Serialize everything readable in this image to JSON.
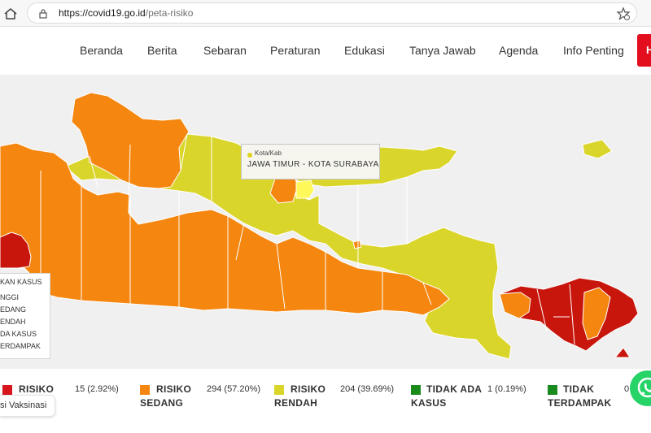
{
  "browser": {
    "url_domain": "https://covid19.go.id",
    "url_path": "/peta-risiko"
  },
  "nav": {
    "items": [
      "Beranda",
      "Berita",
      "Sebaran",
      "Peraturan",
      "Edukasi",
      "Tanya Jawab",
      "Agenda",
      "Info Penting"
    ],
    "button_partial": "H"
  },
  "map": {
    "tooltip_key": "Kota/Kab",
    "tooltip_value": "JAWA TIMUR - KOTA SURABAYA",
    "legend_title": "KAN KASUS",
    "legend_items": [
      "NGGI",
      "EDANG",
      "ENDAH",
      "DA KASUS",
      "ERDAMPAK"
    ],
    "colors": {
      "tinggi": "#c8160c",
      "sedang": "#f5860f",
      "rendah": "#dad52b",
      "highlight": "#fff85a",
      "tidak_ada_kasus": "#1a8a1a",
      "tidak_terdampak": "#198a1e"
    }
  },
  "stats": {
    "tinggi": {
      "label_line1": "RISIKO",
      "value": "15 (2.92%)",
      "color": "#d7161e"
    },
    "sedang": {
      "label_line1": "RISIKO",
      "label_line2": "SEDANG",
      "value": "294 (57.20%)",
      "color": "#f5860f"
    },
    "rendah": {
      "label_line1": "RISIKO",
      "label_line2": "RENDAH",
      "value": "204 (39.69%)",
      "color": "#dad52b"
    },
    "tidak_ada": {
      "label_line1": "TIDAK ADA",
      "label_line2": "KASUS",
      "value": "1 (0.19%)",
      "color": "#1a8a1a"
    },
    "tidak_terdampak": {
      "label_line1": "TIDAK",
      "label_line2": "TERDAMPAK",
      "value": "0",
      "color": "#198a1e"
    }
  },
  "vaksinasi_label": "si Vaksinasi"
}
